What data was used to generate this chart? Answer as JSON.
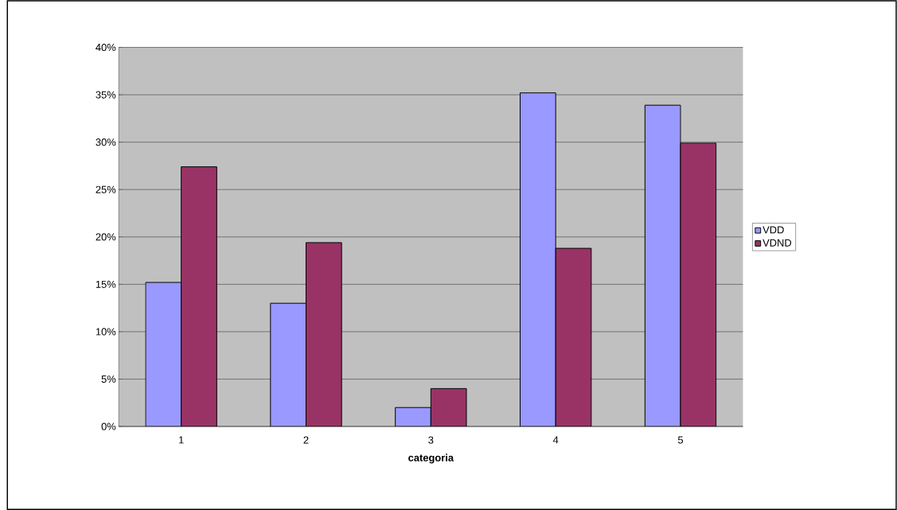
{
  "chart_data": {
    "type": "bar",
    "xlabel": "categoria",
    "categories": [
      "1",
      "2",
      "3",
      "4",
      "5"
    ],
    "series": [
      {
        "name": "VDD",
        "color": "#9999ff",
        "values": [
          15.2,
          13.0,
          2.0,
          35.2,
          33.9
        ]
      },
      {
        "name": "VDND",
        "color": "#993366",
        "values": [
          27.4,
          19.4,
          4.0,
          18.8,
          29.9
        ]
      }
    ],
    "ylim": [
      0,
      40
    ],
    "yticks": [
      {
        "value": 0,
        "label": "0%"
      },
      {
        "value": 5,
        "label": "5%"
      },
      {
        "value": 10,
        "label": "10%"
      },
      {
        "value": 15,
        "label": "15%"
      },
      {
        "value": 20,
        "label": "20%"
      },
      {
        "value": 25,
        "label": "25%"
      },
      {
        "value": 30,
        "label": "30%"
      },
      {
        "value": 35,
        "label": "35%"
      },
      {
        "value": 40,
        "label": "40%"
      }
    ],
    "grid": "y",
    "legend": "right"
  }
}
